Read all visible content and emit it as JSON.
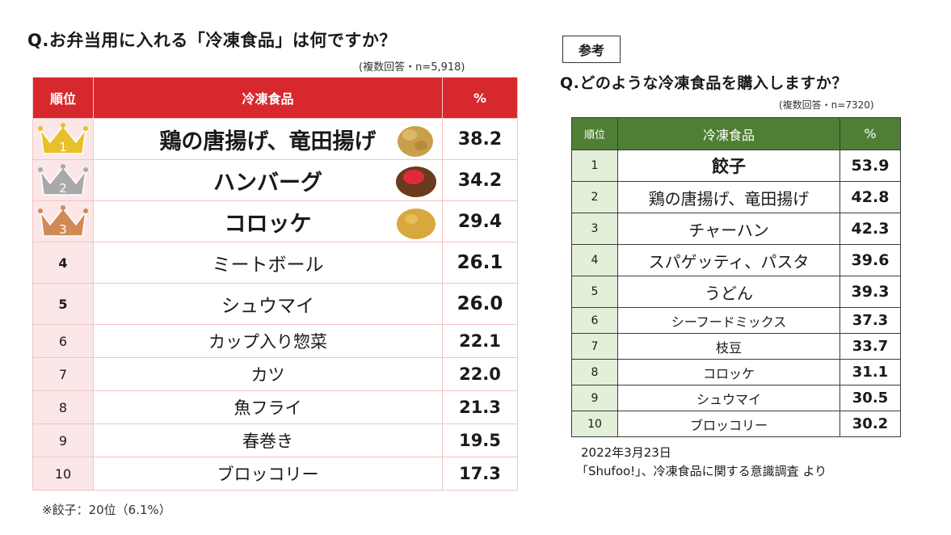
{
  "left": {
    "title": "Q.お弁当用に入れる「冷凍食品」は何ですか？",
    "note": "(複数回答・n=5,918)",
    "headers": {
      "rank": "順位",
      "item": "冷凍食品",
      "pct": "%"
    },
    "footnote": "※餃子：20位（6.1%）",
    "crown_colors": {
      "gold": "#e8c02a",
      "silver": "#a9a9a9",
      "bronze": "#d28a55"
    }
  },
  "right": {
    "badge": "参考",
    "title": "Q.どのような冷凍食品を購入しますか？",
    "note": "(複数回答・n=7320)",
    "headers": {
      "rank": "順位",
      "item": "冷凍食品",
      "pct": "%"
    },
    "source_date": "2022年3月23日",
    "source_text": "「Shufoo!」、冷凍食品に関する意識調査 より"
  },
  "colors": {
    "red_header": "#d7282e",
    "green_header": "#4f7f35",
    "pink_cell": "#fbe7e7",
    "green_cell": "#e3efd9"
  },
  "chart_data": [
    {
      "type": "table",
      "title": "Q.お弁当用に入れる「冷凍食品」は何ですか？",
      "columns": [
        "順位",
        "冷凍食品",
        "%"
      ],
      "rows": [
        {
          "rank": "1",
          "item": "鶏の唐揚げ、竜田揚げ",
          "value": "38.2",
          "icon": "karaage-icon"
        },
        {
          "rank": "2",
          "item": "ハンバーグ",
          "value": "34.2",
          "icon": "hamburg-icon"
        },
        {
          "rank": "3",
          "item": "コロッケ",
          "value": "29.4",
          "icon": "croquette-icon"
        },
        {
          "rank": "4",
          "item": "ミートボール",
          "value": "26.1"
        },
        {
          "rank": "5",
          "item": "シュウマイ",
          "value": "26.0"
        },
        {
          "rank": "6",
          "item": "カップ入り惣菜",
          "value": "22.1"
        },
        {
          "rank": "7",
          "item": "カツ",
          "value": "22.0"
        },
        {
          "rank": "8",
          "item": "魚フライ",
          "value": "21.3"
        },
        {
          "rank": "9",
          "item": "春巻き",
          "value": "19.5"
        },
        {
          "rank": "10",
          "item": "ブロッコリー",
          "value": "17.3"
        }
      ]
    },
    {
      "type": "table",
      "title": "Q.どのような冷凍食品を購入しますか？",
      "columns": [
        "順位",
        "冷凍食品",
        "%"
      ],
      "rows": [
        {
          "rank": "1",
          "item": "餃子",
          "value": "53.9"
        },
        {
          "rank": "2",
          "item": "鶏の唐揚げ、竜田揚げ",
          "value": "42.8"
        },
        {
          "rank": "3",
          "item": "チャーハン",
          "value": "42.3"
        },
        {
          "rank": "4",
          "item": "スパゲッティ、パスタ",
          "value": "39.6"
        },
        {
          "rank": "5",
          "item": "うどん",
          "value": "39.3"
        },
        {
          "rank": "6",
          "item": "シーフードミックス",
          "value": "37.3"
        },
        {
          "rank": "7",
          "item": "枝豆",
          "value": "33.7"
        },
        {
          "rank": "8",
          "item": "コロッケ",
          "value": "31.1"
        },
        {
          "rank": "9",
          "item": "シュウマイ",
          "value": "30.5"
        },
        {
          "rank": "10",
          "item": "ブロッコリー",
          "value": "30.2"
        }
      ]
    }
  ]
}
